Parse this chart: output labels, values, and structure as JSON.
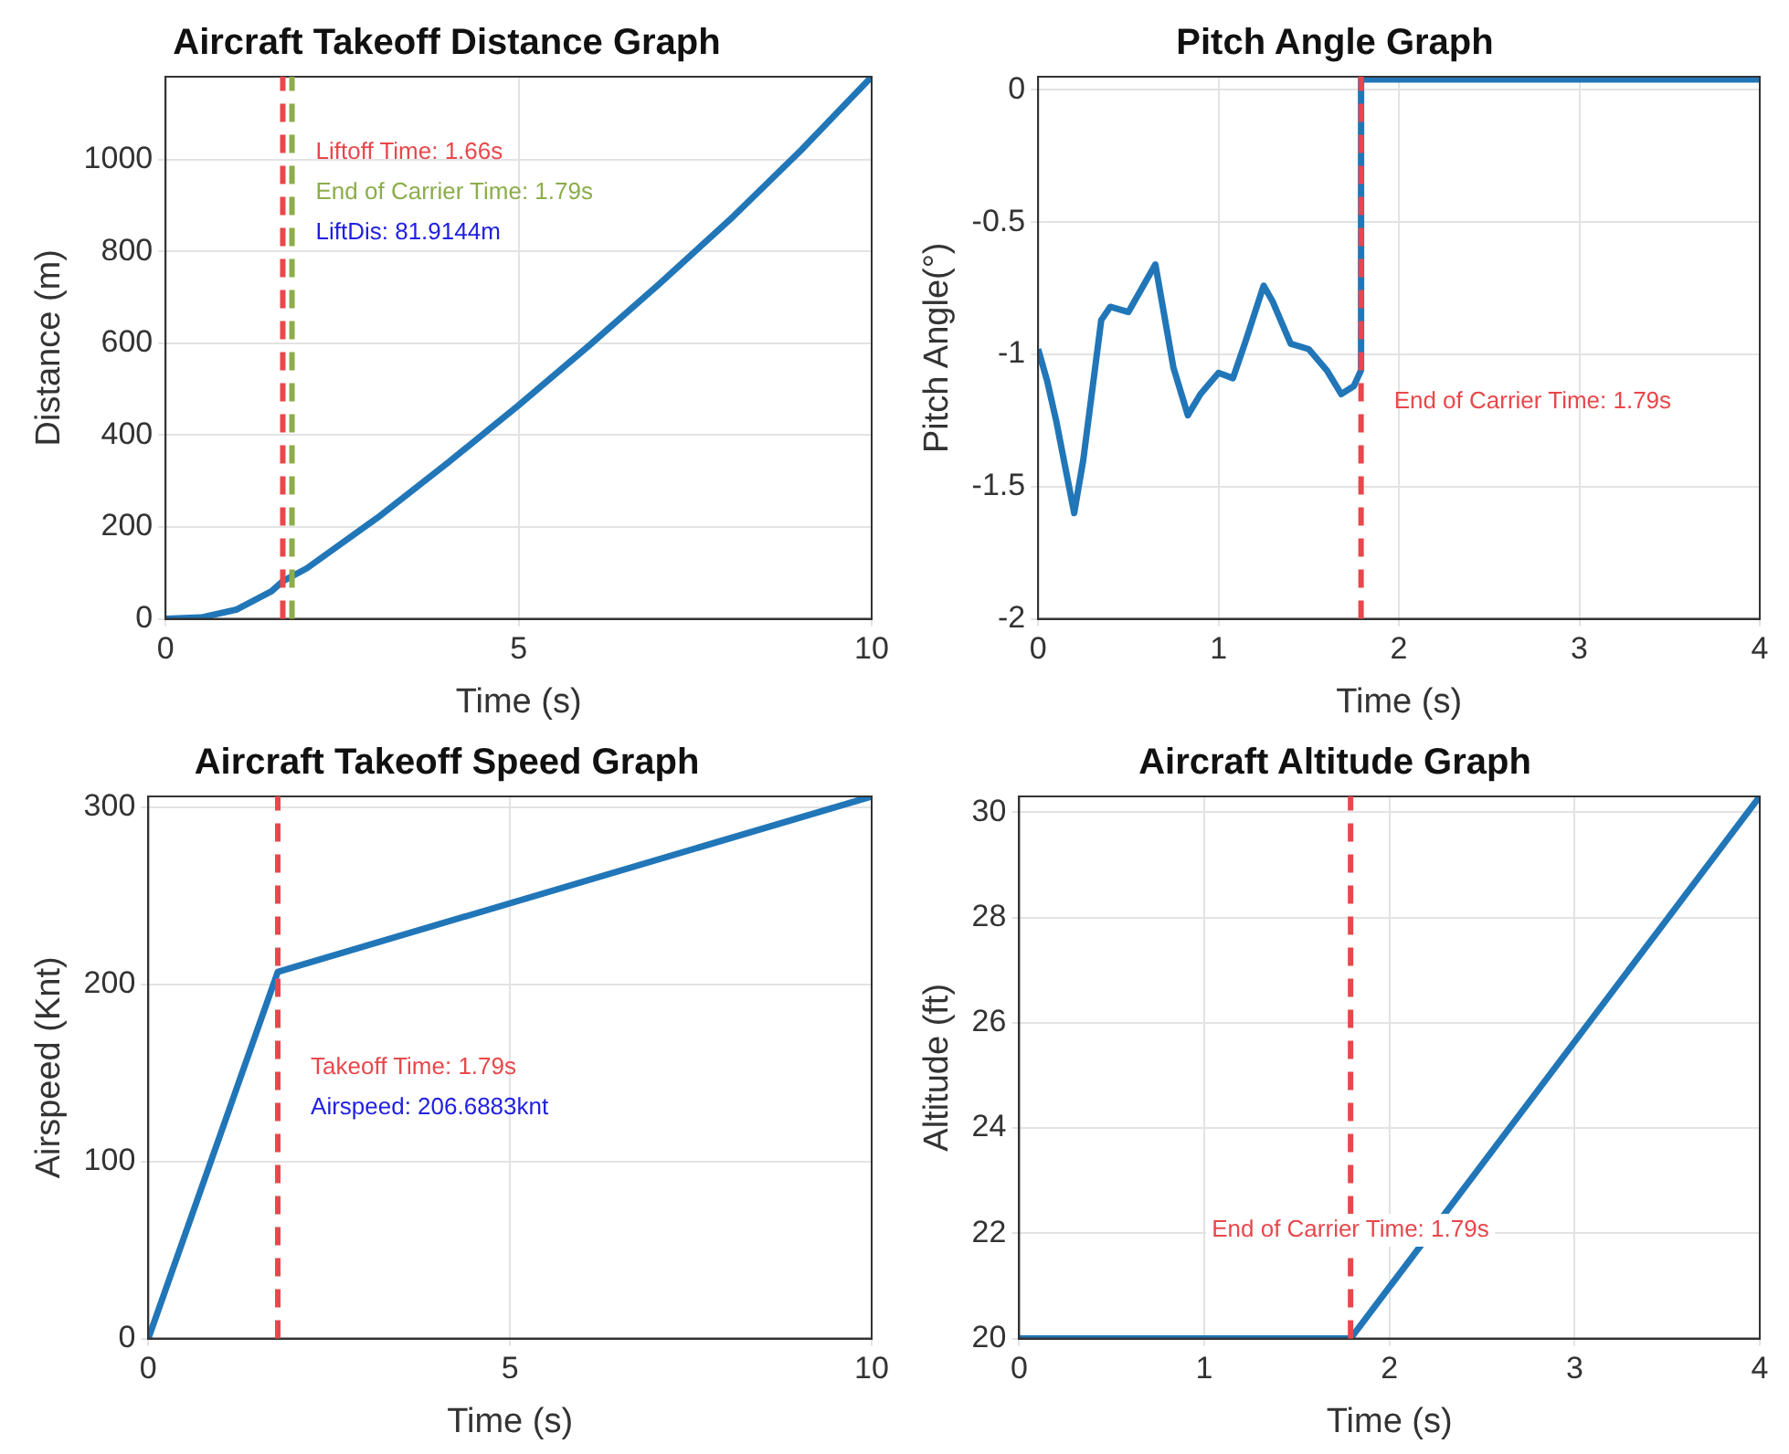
{
  "chart_data": [
    {
      "type": "line",
      "title": "Aircraft Takeoff Distance Graph",
      "xlabel": "Time (s)",
      "ylabel": "Distance (m)",
      "xlim": [
        0,
        10
      ],
      "xticks": [
        0,
        5,
        10
      ],
      "ylim": [
        0,
        1180
      ],
      "yticks": [
        0,
        200,
        400,
        600,
        800,
        1000
      ],
      "grid": true,
      "marker": "none",
      "series": [
        {
          "color": "#2176b8",
          "x": [
            0,
            0.5,
            1,
            1.5,
            1.66,
            2,
            3,
            4,
            5,
            6,
            7,
            8,
            9,
            10
          ],
          "values": [
            0,
            3,
            20,
            60,
            82,
            110,
            220,
            340,
            465,
            595,
            730,
            870,
            1020,
            1180
          ]
        }
      ],
      "ref_lines": [
        {
          "axis": "x",
          "value": 1.66,
          "label": "Liftoff Time: 1.66s",
          "color": "#e8474b",
          "line_style": "dashed"
        },
        {
          "axis": "x",
          "value": 1.79,
          "label": "End of Carrier Time: 1.79s",
          "color": "#8cad4a",
          "line_style": "dashed"
        }
      ],
      "annotations": [
        "LiftDis: 81.9144m"
      ]
    },
    {
      "type": "line",
      "title": "Pitch Angle Graph",
      "xlabel": "Time (s)",
      "ylabel": "Pitch Angle(°)",
      "xlim": [
        0,
        4
      ],
      "xticks": [
        0,
        1,
        2,
        3,
        4
      ],
      "ylim": [
        -2,
        0.05
      ],
      "yticks": [
        -2,
        -1.5,
        -1,
        -0.5,
        0
      ],
      "grid": true,
      "marker": "none",
      "series": [
        {
          "color": "#2176b8",
          "x": [
            0,
            0.05,
            0.1,
            0.2,
            0.25,
            0.35,
            0.4,
            0.5,
            0.65,
            0.75,
            0.83,
            0.9,
            1,
            1.08,
            1.15,
            1.25,
            1.3,
            1.4,
            1.5,
            1.6,
            1.68,
            1.75,
            1.79,
            1.79,
            4
          ],
          "values": [
            -0.98,
            -1.1,
            -1.25,
            -1.6,
            -1.4,
            -0.87,
            -0.82,
            -0.84,
            -0.66,
            -1.05,
            -1.23,
            -1.15,
            -1.07,
            -1.09,
            -0.95,
            -0.74,
            -0.8,
            -0.96,
            -0.98,
            -1.06,
            -1.15,
            -1.12,
            -1.06,
            0.04,
            0.04
          ]
        }
      ],
      "ref_lines": [
        {
          "axis": "x",
          "value": 1.79,
          "label": "End of Carrier Time: 1.79s",
          "color": "#e8474b",
          "line_style": "dashed"
        }
      ]
    },
    {
      "type": "line",
      "title": "Aircraft Takeoff Speed Graph",
      "xlabel": "Time (s)",
      "ylabel": "Airspeed (Knt)",
      "xlim": [
        0,
        10
      ],
      "xticks": [
        0,
        5,
        10
      ],
      "ylim": [
        0,
        306
      ],
      "yticks": [
        0,
        100,
        200,
        300
      ],
      "grid": true,
      "marker": "none",
      "series": [
        {
          "color": "#2176b8",
          "x": [
            0,
            1.79,
            10
          ],
          "values": [
            0,
            207,
            306
          ]
        }
      ],
      "ref_lines": [
        {
          "axis": "x",
          "value": 1.79,
          "label": "Takeoff Time: 1.79s",
          "color": "#e8474b",
          "line_style": "dashed"
        }
      ],
      "annotations": [
        "Airspeed: 206.6883knt"
      ]
    },
    {
      "type": "line",
      "title": "Aircraft Altitude Graph",
      "xlabel": "Time (s)",
      "ylabel": "Altitude (ft)",
      "xlim": [
        0,
        4
      ],
      "xticks": [
        0,
        1,
        2,
        3,
        4
      ],
      "ylim": [
        20,
        30.3
      ],
      "yticks": [
        20,
        22,
        24,
        26,
        28,
        30
      ],
      "grid": true,
      "marker": "none",
      "series": [
        {
          "color": "#2176b8",
          "x": [
            0,
            1.79,
            4
          ],
          "values": [
            20,
            20,
            30.3
          ]
        }
      ],
      "ref_lines": [
        {
          "axis": "x",
          "value": 1.79,
          "label": "End of Carrier Time: 1.79s",
          "color": "#e8474b",
          "line_style": "dashed"
        }
      ]
    }
  ]
}
